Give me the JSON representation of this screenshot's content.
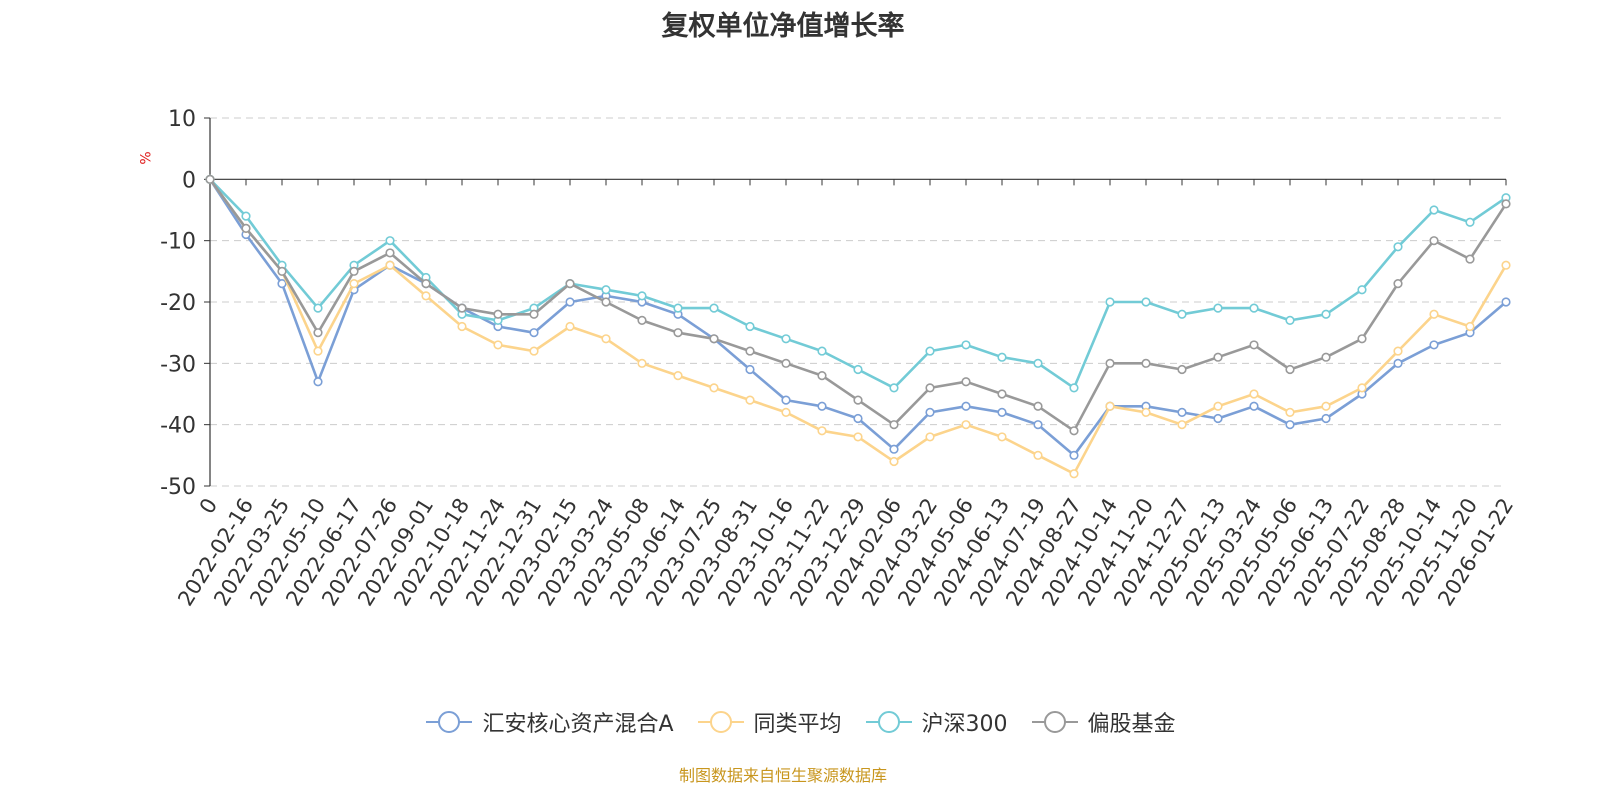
{
  "chart_data": {
    "type": "line",
    "title": "复权单位净值增长率",
    "ylabel": "%",
    "ylim": [
      -50,
      10
    ],
    "yticks": [
      10,
      0,
      -10,
      -20,
      -30,
      -40,
      -50
    ],
    "grid": true,
    "legend_position": "bottom",
    "categories": [
      "0",
      "2022-02-16",
      "2022-03-25",
      "2022-05-10",
      "2022-06-17",
      "2022-07-26",
      "2022-09-01",
      "2022-10-18",
      "2022-11-24",
      "2022-12-31",
      "2023-02-15",
      "2023-03-24",
      "2023-05-08",
      "2023-06-14",
      "2023-07-25",
      "2023-08-31",
      "2023-10-16",
      "2023-11-22",
      "2023-12-29",
      "2024-02-06",
      "2024-03-22",
      "2024-05-06",
      "2024-06-13",
      "2024-07-19",
      "2024-08-27",
      "2024-10-14",
      "2024-11-20",
      "2024-12-27",
      "2025-02-13",
      "2025-03-24",
      "2025-05-06",
      "2025-06-13",
      "2025-07-22",
      "2025-08-28",
      "2025-10-14",
      "2025-11-20",
      "2026-01-22"
    ],
    "series": [
      {
        "name": "汇安核心资产混合A",
        "color": "#7b9fd6",
        "values": [
          0,
          -9,
          -17,
          -33,
          -18,
          -14,
          -17,
          -21,
          -24,
          -25,
          -20,
          -19,
          -20,
          -22,
          -26,
          -31,
          -36,
          -37,
          -39,
          -44,
          -38,
          -37,
          -38,
          -40,
          -45,
          -37,
          -37,
          -38,
          -39,
          -37,
          -40,
          -39,
          -35,
          -30,
          -27,
          -25,
          -20
        ]
      },
      {
        "name": "同类平均",
        "color": "#fcd48c",
        "values": [
          0,
          -8,
          -15,
          -28,
          -17,
          -14,
          -19,
          -24,
          -27,
          -28,
          -24,
          -26,
          -30,
          -32,
          -34,
          -36,
          -38,
          -41,
          -42,
          -46,
          -42,
          -40,
          -42,
          -45,
          -48,
          -37,
          -38,
          -40,
          -37,
          -35,
          -38,
          -37,
          -34,
          -28,
          -22,
          -24,
          -14
        ]
      },
      {
        "name": "沪深300",
        "color": "#72cbd6",
        "values": [
          0,
          -6,
          -14,
          -21,
          -14,
          -10,
          -16,
          -22,
          -23,
          -21,
          -17,
          -18,
          -19,
          -21,
          -21,
          -24,
          -26,
          -28,
          -31,
          -34,
          -28,
          -27,
          -29,
          -30,
          -34,
          -20,
          -20,
          -22,
          -21,
          -21,
          -23,
          -22,
          -18,
          -11,
          -5,
          -7,
          -3
        ]
      },
      {
        "name": "偏股基金",
        "color": "#999999",
        "values": [
          0,
          -8,
          -15,
          -25,
          -15,
          -12,
          -17,
          -21,
          -22,
          -22,
          -17,
          -20,
          -23,
          -25,
          -26,
          -28,
          -30,
          -32,
          -36,
          -40,
          -34,
          -33,
          -35,
          -37,
          -41,
          -30,
          -30,
          -31,
          -29,
          -27,
          -31,
          -29,
          -26,
          -17,
          -10,
          -13,
          -4
        ]
      }
    ]
  },
  "footer": "制图数据来自恒生聚源数据库"
}
